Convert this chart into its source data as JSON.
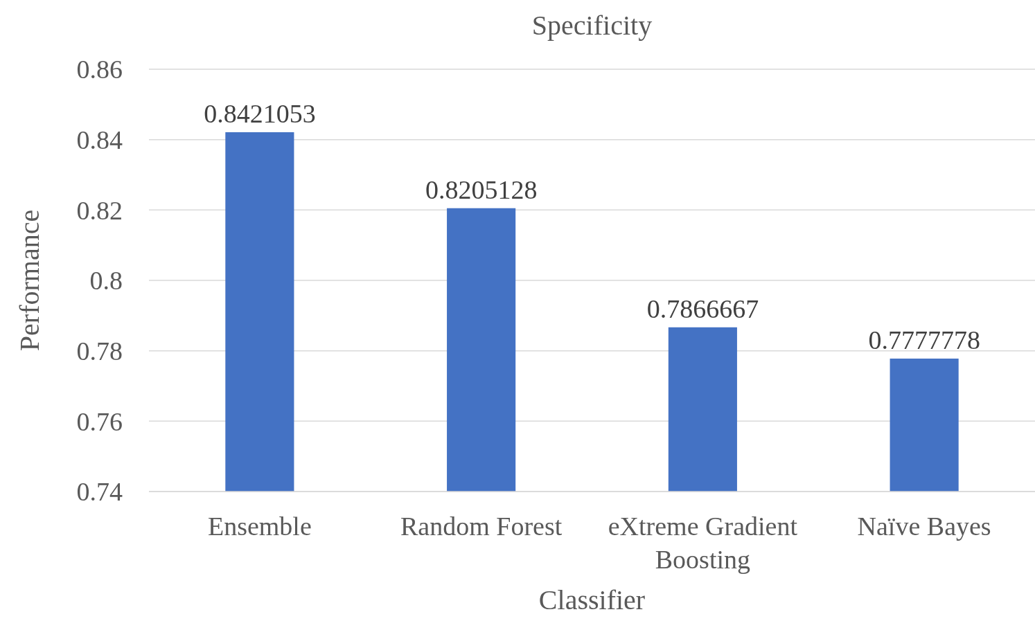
{
  "chart_data": {
    "type": "bar",
    "title": "Specificity",
    "xlabel": "Classifier",
    "ylabel": "Performance",
    "categories": [
      "Ensemble",
      "Random Forest",
      "eXtreme Gradient Boosting",
      "Naïve Bayes"
    ],
    "values": [
      0.8421053,
      0.8205128,
      0.7866667,
      0.7777778
    ],
    "color": "#4472c4",
    "ylim": [
      0.74,
      0.86
    ],
    "yticks": [
      0.74,
      0.76,
      0.78,
      0.8,
      0.82,
      0.84,
      0.86
    ],
    "grid": "y",
    "data_labels": true
  }
}
